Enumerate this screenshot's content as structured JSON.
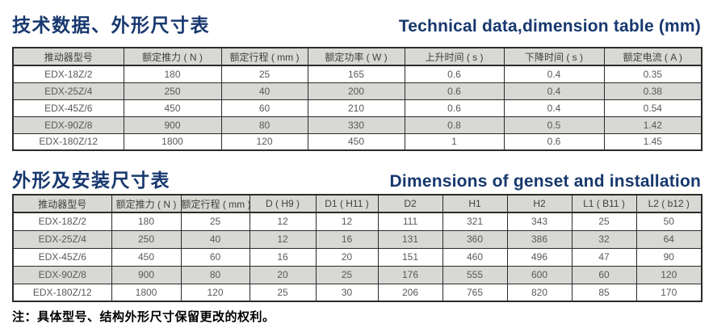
{
  "theme": {
    "accent": "#17386e",
    "header_bg": "#d8d8d4",
    "stripe_bg": "#d8d8d4",
    "border": "#2b2b2b",
    "cell_text": "#58595b",
    "note_text": "#000000",
    "page_bg": "#ffffff"
  },
  "section1": {
    "title_zh": "技术数据、外形尺寸表",
    "title_en": "Technical data,dimension table (mm)",
    "table": {
      "headers": [
        "推动器型号",
        "额定推力 ( N )",
        "额定行程 ( mm )",
        "额定功率 ( W )",
        "上升时间 ( s )",
        "下降时间 ( s )",
        "额定电流 ( A )"
      ],
      "rows": [
        [
          "EDX-18Z/2",
          "180",
          "25",
          "165",
          "0.6",
          "0.4",
          "0.35"
        ],
        [
          "EDX-25Z/4",
          "250",
          "40",
          "200",
          "0.6",
          "0.4",
          "0.38"
        ],
        [
          "EDX-45Z/6",
          "450",
          "60",
          "210",
          "0.6",
          "0.4",
          "0.54"
        ],
        [
          "EDX-90Z/8",
          "900",
          "80",
          "330",
          "0.8",
          "0.5",
          "1.42"
        ],
        [
          "EDX-180Z/12",
          "1800",
          "120",
          "450",
          "1",
          "0.6",
          "1.45"
        ]
      ]
    }
  },
  "section2": {
    "title_zh": "外形及安装尺寸表",
    "title_en": "Dimensions of genset and installation",
    "table": {
      "headers": [
        "推动器型号",
        "额定推力 ( N )",
        "额定行程 ( mm )",
        "D ( H9 )",
        "D1 ( H11 )",
        "D2",
        "H1",
        "H2",
        "L1 ( B11 )",
        "L2 ( b12 )"
      ],
      "rows": [
        [
          "EDX-18Z/2",
          "180",
          "25",
          "12",
          "12",
          "111",
          "321",
          "343",
          "25",
          "50"
        ],
        [
          "EDX-25Z/4",
          "250",
          "40",
          "12",
          "16",
          "131",
          "360",
          "386",
          "32",
          "64"
        ],
        [
          "EDX-45Z/6",
          "450",
          "60",
          "16",
          "20",
          "151",
          "460",
          "496",
          "47",
          "90"
        ],
        [
          "EDX-90Z/8",
          "900",
          "80",
          "20",
          "25",
          "176",
          "555",
          "600",
          "60",
          "120"
        ],
        [
          "EDX-180Z/12",
          "1800",
          "120",
          "25",
          "30",
          "206",
          "765",
          "820",
          "85",
          "170"
        ]
      ]
    }
  },
  "note": "注：具体型号、结构外形尺寸保留更改的权利。"
}
